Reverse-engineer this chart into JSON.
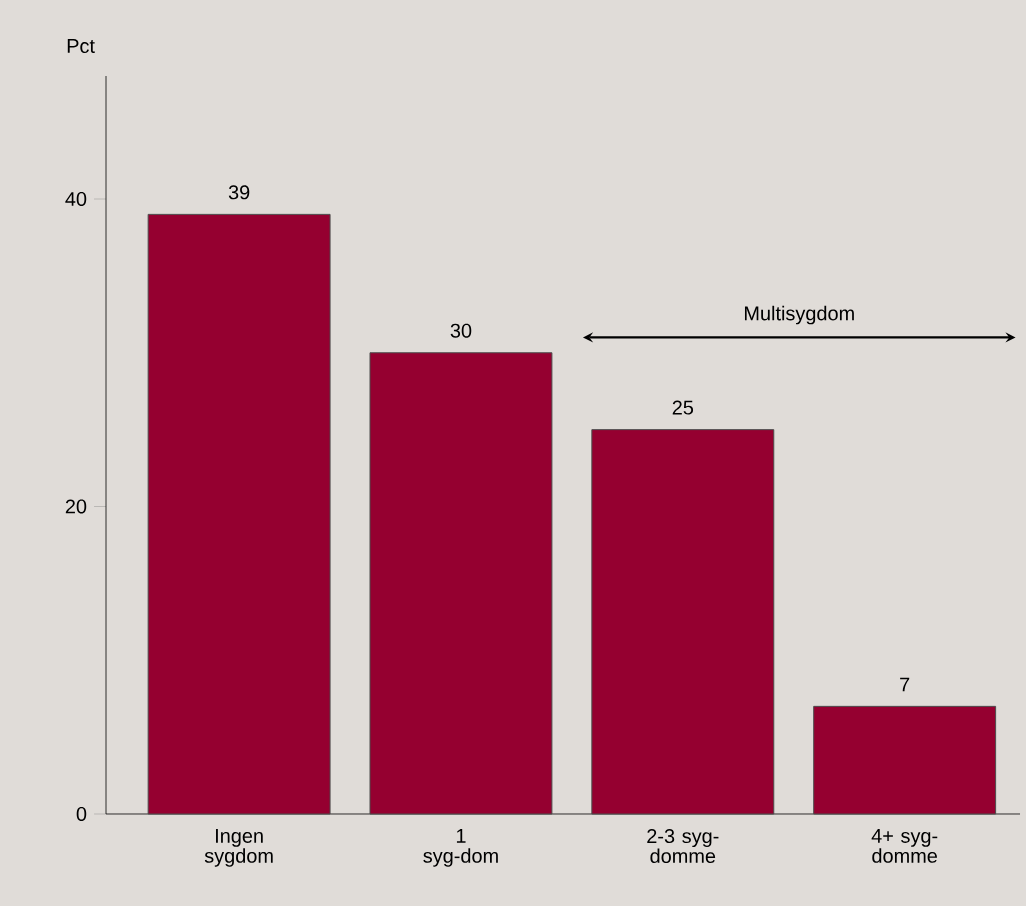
{
  "chart_data": {
    "type": "bar",
    "ylabel": "Pct",
    "categories": [
      "Ingen sygdom",
      "1 syg-dom",
      "2-3 syg-domme",
      "4+ syg-domme"
    ],
    "values": [
      39,
      30,
      25,
      7
    ],
    "color": "#950030",
    "ylim": [
      0,
      48
    ],
    "yticks": [
      0,
      20,
      40
    ],
    "data_labels": true,
    "annotations": [
      "Multisygdom"
    ]
  }
}
